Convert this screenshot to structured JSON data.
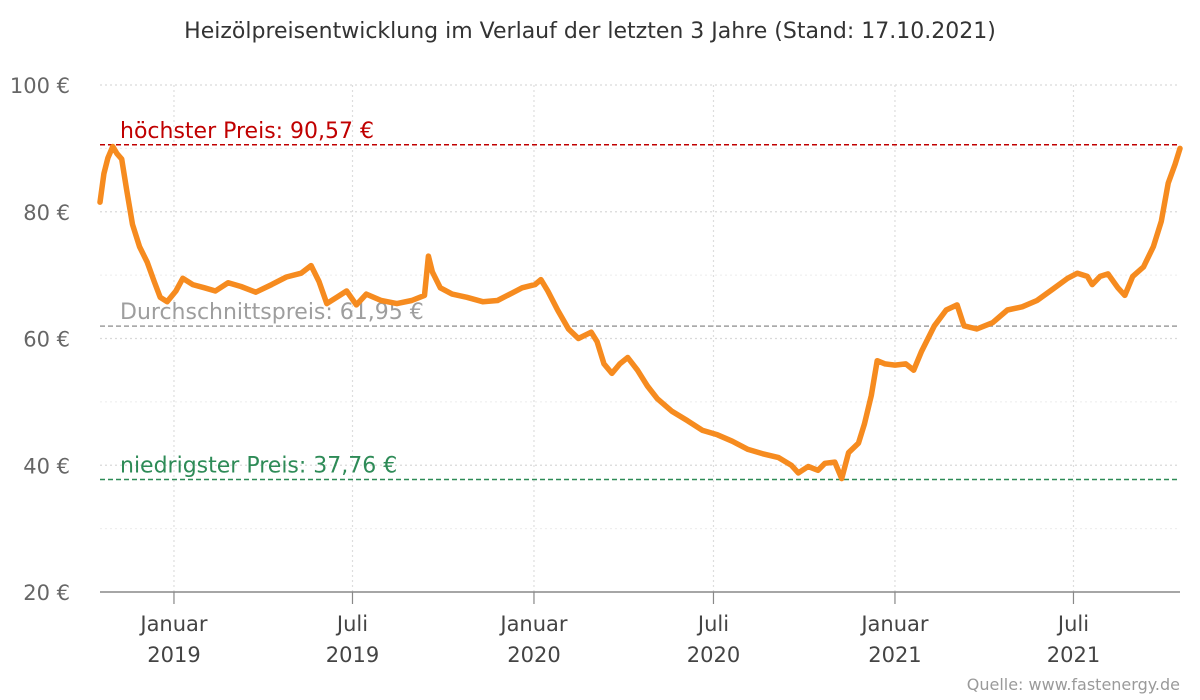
{
  "chart_data": {
    "type": "line",
    "title": "Heizölpreisentwicklung im Verlauf der letzten 3 Jahre (Stand: 17.10.2021)",
    "xlabel": "",
    "ylabel": "",
    "source": "Quelle: www.fastenergy.de",
    "x_start": "2018-10-18",
    "x_end": "2021-10-17",
    "ylim": [
      20,
      100
    ],
    "yticks": [
      {
        "value": 20,
        "label": "20 €"
      },
      {
        "value": 40,
        "label": "40 €"
      },
      {
        "value": 60,
        "label": "60 €"
      },
      {
        "value": 80,
        "label": "80 €"
      },
      {
        "value": 100,
        "label": "100 €"
      }
    ],
    "xticks": [
      {
        "date": "2019-01-01",
        "month": "Januar",
        "year": "2019"
      },
      {
        "date": "2019-07-01",
        "month": "Juli",
        "year": "2019"
      },
      {
        "date": "2020-01-01",
        "month": "Januar",
        "year": "2020"
      },
      {
        "date": "2020-07-01",
        "month": "Juli",
        "year": "2020"
      },
      {
        "date": "2021-01-01",
        "month": "Januar",
        "year": "2021"
      },
      {
        "date": "2021-07-01",
        "month": "Juli",
        "year": "2021"
      }
    ],
    "grid": true,
    "reference_lines": [
      {
        "name": "max",
        "value": 90.57,
        "label": "höchster Preis: 90,57 €",
        "color": "#c00000"
      },
      {
        "name": "avg",
        "value": 61.95,
        "label": "Durchschnittspreis: 61,95 €",
        "color": "#9e9e9e"
      },
      {
        "name": "min",
        "value": 37.76,
        "label": "niedrigster Preis: 37,76 €",
        "color": "#2e8b57"
      }
    ],
    "series": [
      {
        "name": "Heizölpreis",
        "color": "#f68b1f",
        "points": [
          [
            "2018-10-18",
            81.5
          ],
          [
            "2018-10-22",
            86.0
          ],
          [
            "2018-10-26",
            88.5
          ],
          [
            "2018-10-31",
            90.3
          ],
          [
            "2018-11-04",
            89.2
          ],
          [
            "2018-11-09",
            88.3
          ],
          [
            "2018-11-14",
            83.5
          ],
          [
            "2018-11-20",
            78.0
          ],
          [
            "2018-11-27",
            74.5
          ],
          [
            "2018-12-05",
            72.0
          ],
          [
            "2018-12-12",
            69.0
          ],
          [
            "2018-12-18",
            66.5
          ],
          [
            "2018-12-25",
            65.8
          ],
          [
            "2019-01-03",
            67.5
          ],
          [
            "2019-01-10",
            69.5
          ],
          [
            "2019-01-20",
            68.5
          ],
          [
            "2019-02-01",
            68.0
          ],
          [
            "2019-02-12",
            67.5
          ],
          [
            "2019-02-25",
            68.8
          ],
          [
            "2019-03-10",
            68.2
          ],
          [
            "2019-03-25",
            67.3
          ],
          [
            "2019-04-10",
            68.5
          ],
          [
            "2019-04-25",
            69.7
          ],
          [
            "2019-05-10",
            70.3
          ],
          [
            "2019-05-20",
            71.5
          ],
          [
            "2019-05-28",
            69.0
          ],
          [
            "2019-06-05",
            65.5
          ],
          [
            "2019-06-15",
            66.5
          ],
          [
            "2019-06-25",
            67.5
          ],
          [
            "2019-07-05",
            65.3
          ],
          [
            "2019-07-15",
            67.0
          ],
          [
            "2019-07-30",
            66.0
          ],
          [
            "2019-08-15",
            65.5
          ],
          [
            "2019-08-30",
            66.0
          ],
          [
            "2019-09-12",
            66.8
          ],
          [
            "2019-09-16",
            73.0
          ],
          [
            "2019-09-20",
            70.5
          ],
          [
            "2019-09-28",
            68.0
          ],
          [
            "2019-10-10",
            67.0
          ],
          [
            "2019-10-25",
            66.5
          ],
          [
            "2019-11-10",
            65.8
          ],
          [
            "2019-11-25",
            66.0
          ],
          [
            "2019-12-10",
            67.2
          ],
          [
            "2019-12-20",
            68.0
          ],
          [
            "2020-01-02",
            68.5
          ],
          [
            "2020-01-08",
            69.3
          ],
          [
            "2020-01-15",
            67.5
          ],
          [
            "2020-01-25",
            64.5
          ],
          [
            "2020-02-05",
            61.5
          ],
          [
            "2020-02-15",
            60.0
          ],
          [
            "2020-02-28",
            61.0
          ],
          [
            "2020-03-05",
            59.5
          ],
          [
            "2020-03-12",
            56.0
          ],
          [
            "2020-03-20",
            54.5
          ],
          [
            "2020-03-28",
            56.0
          ],
          [
            "2020-04-05",
            57.0
          ],
          [
            "2020-04-15",
            55.0
          ],
          [
            "2020-04-25",
            52.5
          ],
          [
            "2020-05-05",
            50.5
          ],
          [
            "2020-05-20",
            48.5
          ],
          [
            "2020-06-05",
            47.0
          ],
          [
            "2020-06-20",
            45.5
          ],
          [
            "2020-07-05",
            44.8
          ],
          [
            "2020-07-20",
            43.8
          ],
          [
            "2020-08-05",
            42.5
          ],
          [
            "2020-08-20",
            41.8
          ],
          [
            "2020-09-05",
            41.2
          ],
          [
            "2020-09-18",
            40.0
          ],
          [
            "2020-09-25",
            38.8
          ],
          [
            "2020-10-05",
            39.8
          ],
          [
            "2020-10-15",
            39.2
          ],
          [
            "2020-10-22",
            40.3
          ],
          [
            "2020-11-01",
            40.5
          ],
          [
            "2020-11-08",
            37.9
          ],
          [
            "2020-11-15",
            42.0
          ],
          [
            "2020-11-25",
            43.5
          ],
          [
            "2020-12-01",
            46.5
          ],
          [
            "2020-12-08",
            51.0
          ],
          [
            "2020-12-14",
            56.5
          ],
          [
            "2020-12-22",
            56.0
          ],
          [
            "2021-01-01",
            55.8
          ],
          [
            "2021-01-12",
            56.0
          ],
          [
            "2021-01-20",
            55.0
          ],
          [
            "2021-01-28",
            58.0
          ],
          [
            "2021-02-10",
            62.0
          ],
          [
            "2021-02-22",
            64.5
          ],
          [
            "2021-03-05",
            65.3
          ],
          [
            "2021-03-12",
            62.0
          ],
          [
            "2021-03-25",
            61.5
          ],
          [
            "2021-04-10",
            62.5
          ],
          [
            "2021-04-25",
            64.5
          ],
          [
            "2021-05-10",
            65.0
          ],
          [
            "2021-05-25",
            66.0
          ],
          [
            "2021-06-10",
            67.8
          ],
          [
            "2021-06-25",
            69.5
          ],
          [
            "2021-07-05",
            70.3
          ],
          [
            "2021-07-15",
            69.8
          ],
          [
            "2021-07-20",
            68.5
          ],
          [
            "2021-07-28",
            69.8
          ],
          [
            "2021-08-05",
            70.2
          ],
          [
            "2021-08-15",
            68.0
          ],
          [
            "2021-08-22",
            66.8
          ],
          [
            "2021-08-30",
            69.8
          ],
          [
            "2021-09-10",
            71.3
          ],
          [
            "2021-09-20",
            74.5
          ],
          [
            "2021-09-28",
            78.5
          ],
          [
            "2021-10-05",
            84.5
          ],
          [
            "2021-10-12",
            87.5
          ],
          [
            "2021-10-17",
            90.0
          ]
        ]
      }
    ]
  }
}
